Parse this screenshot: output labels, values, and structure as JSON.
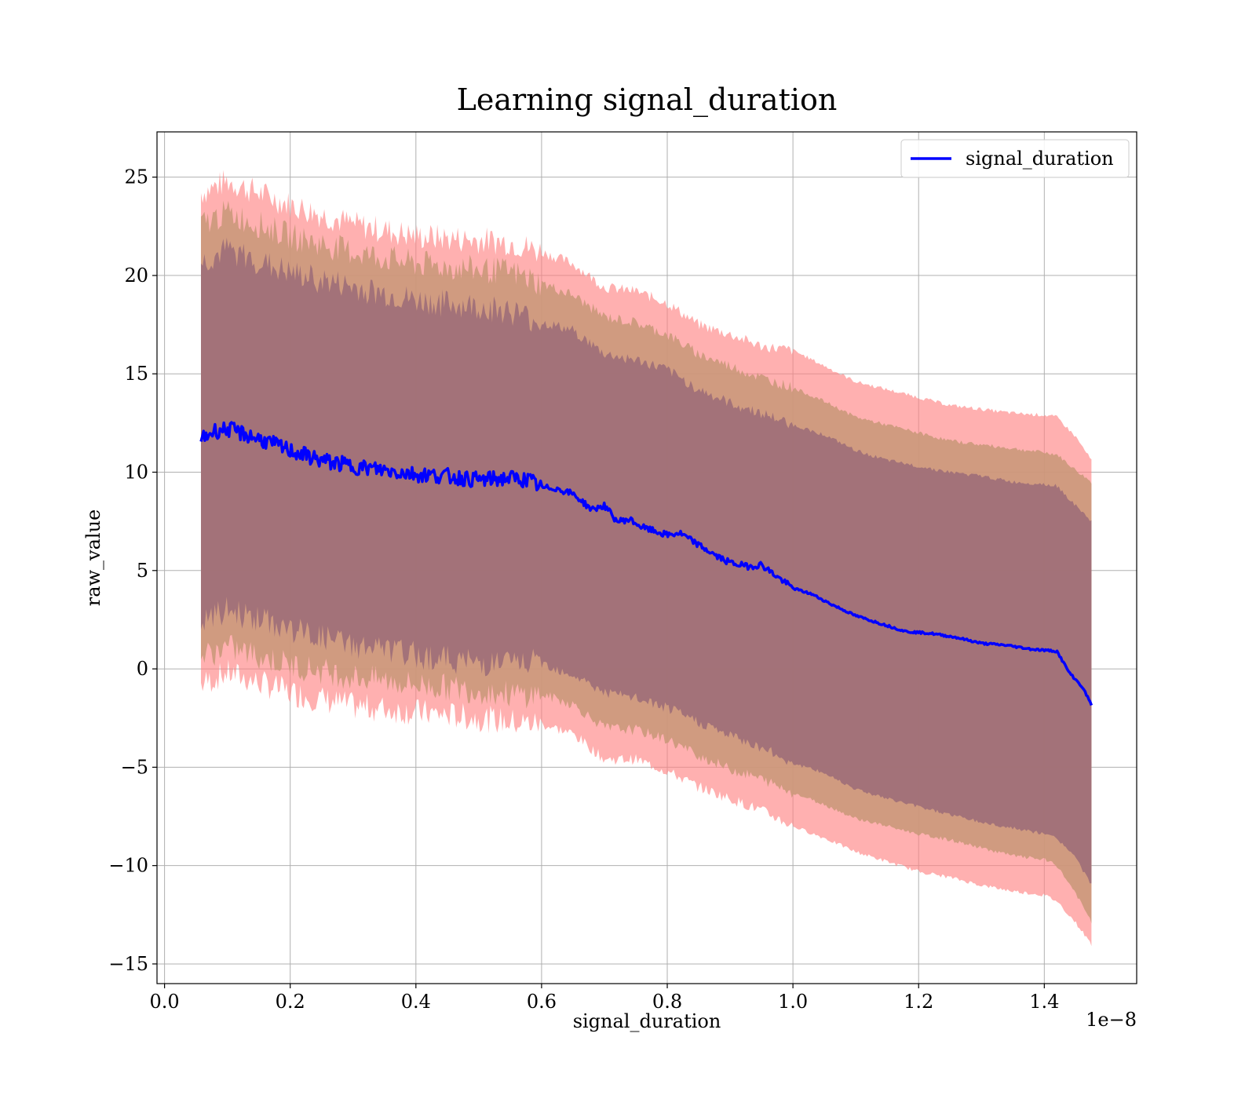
{
  "chart_data": {
    "type": "line",
    "title": "Learning signal_duration",
    "xlabel": "signal_duration",
    "ylabel": "raw_value",
    "x_offset_text": "1e−8",
    "xlim": [
      -0.012,
      1.547
    ],
    "ylim": [
      -16.0,
      27.3
    ],
    "x_tick_values": [
      0.0,
      0.2,
      0.4,
      0.6,
      0.8,
      1.0,
      1.2,
      1.4
    ],
    "x_tick_labels": [
      "0.0",
      "0.2",
      "0.4",
      "0.6",
      "0.8",
      "1.0",
      "1.2",
      "1.4"
    ],
    "y_tick_values": [
      -15,
      -10,
      -5,
      0,
      5,
      10,
      15,
      20,
      25
    ],
    "y_tick_labels": [
      "−15",
      "−10",
      "−5",
      "0",
      "5",
      "10",
      "15",
      "20",
      "25"
    ],
    "grid": true,
    "legend": {
      "position": "upper-right",
      "entries": [
        "signal_duration"
      ]
    },
    "colors": {
      "line": "#0000ff",
      "band_outer": "#ff8080",
      "band_middle": "#c89878",
      "band_inner": "#a07078",
      "grid": "#b0b0b0"
    },
    "series": [
      {
        "name": "signal_duration",
        "x": [
          0.058,
          0.08,
          0.1,
          0.12,
          0.15,
          0.2,
          0.25,
          0.3,
          0.35,
          0.4,
          0.45,
          0.5,
          0.55,
          0.58,
          0.6,
          0.62,
          0.65,
          0.68,
          0.7,
          0.72,
          0.74,
          0.76,
          0.78,
          0.8,
          0.82,
          0.85,
          0.88,
          0.9,
          0.93,
          0.95,
          0.97,
          1.0,
          1.03,
          1.06,
          1.1,
          1.14,
          1.18,
          1.22,
          1.26,
          1.3,
          1.34,
          1.38,
          1.42,
          1.44,
          1.46,
          1.475
        ],
        "y": [
          11.7,
          12.1,
          12.2,
          12.0,
          11.7,
          11.1,
          10.6,
          10.3,
          10.1,
          9.9,
          9.8,
          9.6,
          9.7,
          9.6,
          9.2,
          9.2,
          8.9,
          8.1,
          8.3,
          7.5,
          7.6,
          7.2,
          7.0,
          6.8,
          6.9,
          6.3,
          5.7,
          5.4,
          5.2,
          5.3,
          4.8,
          4.1,
          3.8,
          3.3,
          2.7,
          2.3,
          1.9,
          1.8,
          1.6,
          1.3,
          1.2,
          1.0,
          0.9,
          -0.2,
          -0.9,
          -1.8
        ]
      }
    ],
    "bands": [
      {
        "x": [
          0.058,
          0.1,
          0.2,
          0.3,
          0.4,
          0.5,
          0.55,
          0.6,
          0.65,
          0.7,
          0.75,
          0.8,
          0.85,
          0.9,
          0.95,
          1.0,
          1.05,
          1.1,
          1.15,
          1.2,
          1.25,
          1.3,
          1.35,
          1.4,
          1.42,
          1.45,
          1.475
        ],
        "upper": [
          24.2,
          24.8,
          23.6,
          22.6,
          22.0,
          21.8,
          21.7,
          21.2,
          20.6,
          19.4,
          19.2,
          18.6,
          17.5,
          17.0,
          16.4,
          16.2,
          15.4,
          14.6,
          14.2,
          13.8,
          13.4,
          13.2,
          13.0,
          12.9,
          12.8,
          11.8,
          10.6
        ],
        "lower": [
          -0.8,
          -0.2,
          -1.2,
          -1.9,
          -2.2,
          -2.5,
          -2.7,
          -2.8,
          -3.3,
          -4.6,
          -4.6,
          -5.2,
          -6.0,
          -6.6,
          -7.2,
          -8.0,
          -8.6,
          -9.3,
          -9.8,
          -10.3,
          -10.6,
          -11.0,
          -11.3,
          -11.5,
          -11.8,
          -12.9,
          -14.0
        ]
      },
      {
        "x": [
          0.058,
          0.1,
          0.2,
          0.3,
          0.4,
          0.5,
          0.55,
          0.6,
          0.65,
          0.7,
          0.75,
          0.8,
          0.85,
          0.9,
          0.95,
          1.0,
          1.05,
          1.1,
          1.15,
          1.2,
          1.25,
          1.3,
          1.35,
          1.4,
          1.42,
          1.45,
          1.475
        ],
        "upper": [
          22.6,
          23.2,
          22.0,
          21.2,
          20.6,
          20.3,
          20.2,
          19.6,
          19.0,
          17.9,
          17.6,
          17.0,
          16.0,
          15.4,
          14.8,
          14.3,
          13.6,
          12.8,
          12.4,
          12.0,
          11.6,
          11.4,
          11.2,
          11.0,
          10.9,
          10.1,
          9.5
        ],
        "lower": [
          0.6,
          1.1,
          0.2,
          -0.4,
          -0.8,
          -1.1,
          -1.3,
          -1.3,
          -1.8,
          -3.0,
          -3.1,
          -3.6,
          -4.4,
          -5.1,
          -5.6,
          -6.3,
          -6.9,
          -7.6,
          -8.0,
          -8.4,
          -8.7,
          -9.1,
          -9.5,
          -9.7,
          -10.0,
          -11.4,
          -12.9
        ]
      },
      {
        "x": [
          0.058,
          0.1,
          0.2,
          0.3,
          0.4,
          0.5,
          0.55,
          0.6,
          0.65,
          0.7,
          0.75,
          0.8,
          0.85,
          0.9,
          0.95,
          1.0,
          1.05,
          1.1,
          1.15,
          1.2,
          1.25,
          1.3,
          1.35,
          1.4,
          1.42,
          1.45,
          1.475
        ],
        "upper": [
          20.6,
          21.3,
          20.1,
          19.4,
          18.7,
          18.4,
          18.2,
          17.6,
          17.2,
          16.0,
          15.7,
          15.2,
          14.2,
          13.5,
          13.0,
          12.4,
          11.9,
          11.1,
          10.6,
          10.3,
          10.0,
          9.8,
          9.5,
          9.4,
          9.3,
          8.3,
          7.5
        ],
        "lower": [
          2.3,
          3.0,
          2.0,
          1.2,
          0.7,
          0.3,
          0.3,
          0.3,
          -0.3,
          -1.2,
          -1.5,
          -2.0,
          -2.7,
          -3.4,
          -4.0,
          -4.8,
          -5.3,
          -6.1,
          -6.6,
          -7.0,
          -7.4,
          -7.8,
          -8.1,
          -8.4,
          -8.6,
          -9.6,
          -11.0
        ]
      }
    ]
  }
}
